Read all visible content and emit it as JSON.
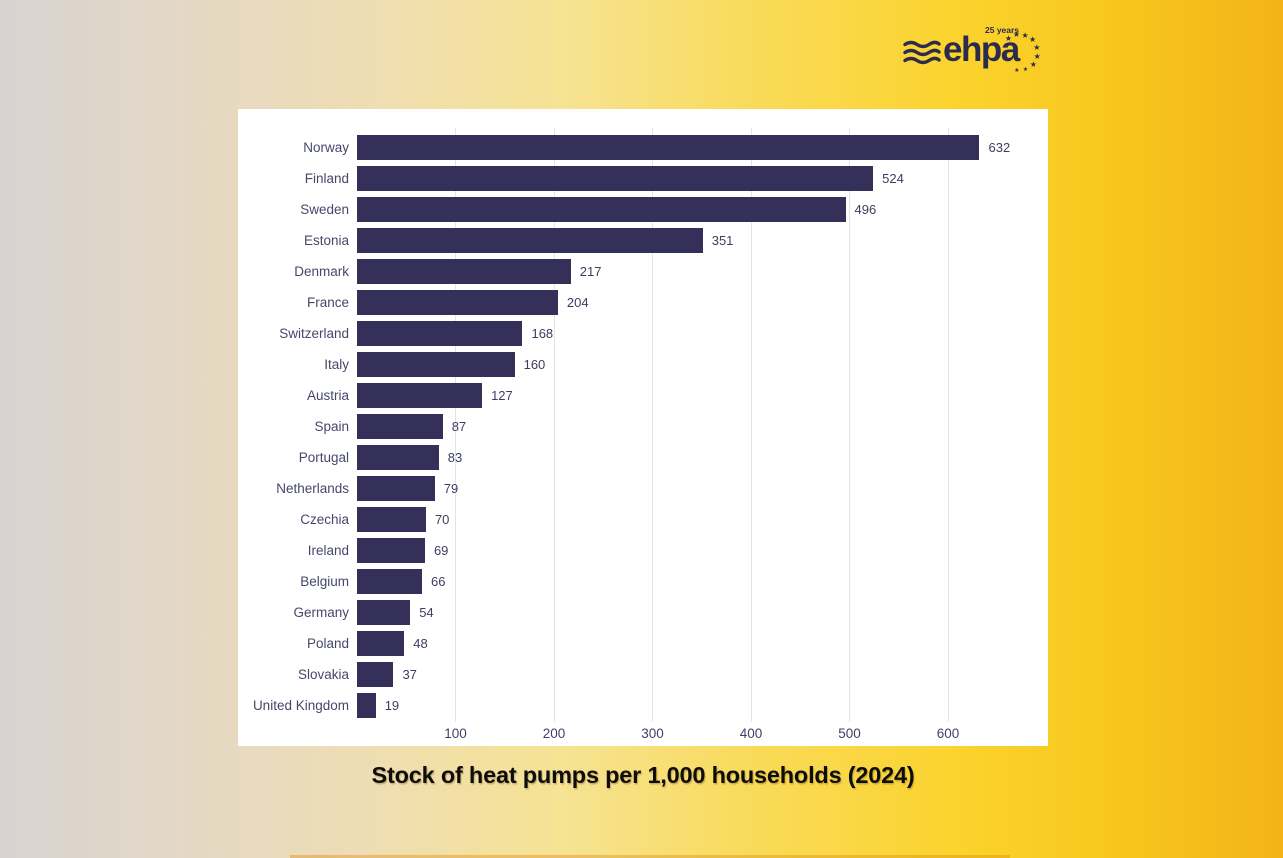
{
  "logo": {
    "brand": "ehpa",
    "anniversary": "25 years"
  },
  "chart_data": {
    "type": "bar",
    "orientation": "horizontal",
    "title": "Stock of heat pumps per 1,000 households (2024)",
    "categories": [
      "Norway",
      "Finland",
      "Sweden",
      "Estonia",
      "Denmark",
      "France",
      "Switzerland",
      "Italy",
      "Austria",
      "Spain",
      "Portugal",
      "Netherlands",
      "Czechia",
      "Ireland",
      "Belgium",
      "Germany",
      "Poland",
      "Slovakia",
      "United Kingdom"
    ],
    "values": [
      632,
      524,
      496,
      351,
      217,
      204,
      168,
      160,
      127,
      87,
      83,
      79,
      70,
      69,
      66,
      54,
      48,
      37,
      19
    ],
    "x_ticks": [
      100,
      200,
      300,
      400,
      500,
      600
    ],
    "xlim": [
      0,
      665
    ],
    "grid": true,
    "legend": false,
    "bar_color": "#35305a",
    "category_label_color": "#45486a",
    "value_label_color": "#3b3e60",
    "grid_color": "#e4e4e7",
    "background_color": "#ffffff"
  },
  "colors": {
    "logo_navy": "#2b2b4e",
    "gradient_left": "#d7d3d0",
    "gradient_right": "#f3b317",
    "title_text": "#0e0d0b"
  }
}
